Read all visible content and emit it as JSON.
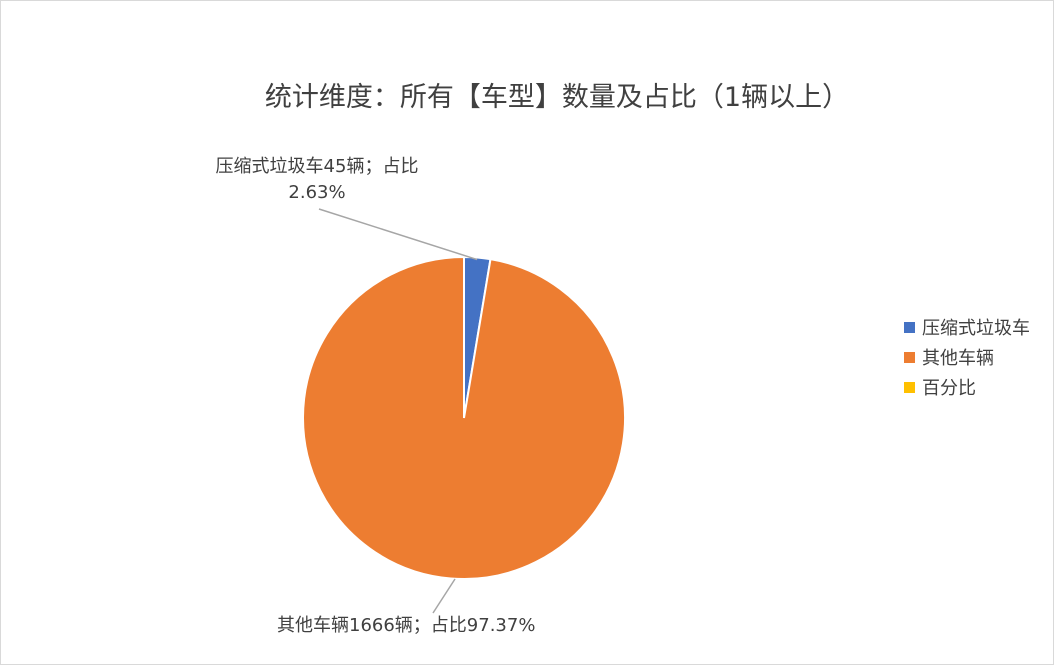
{
  "chart_data": {
    "type": "pie",
    "title": "统计维度：所有【车型】数量及占比（1辆以上）",
    "categories": [
      "压缩式垃圾车",
      "其他车辆"
    ],
    "values": [
      45,
      1666
    ],
    "percentages": [
      2.63,
      97.37
    ],
    "colors": [
      "#4472c4",
      "#ed7d31"
    ],
    "data_labels": [
      {
        "line1": "压缩式垃圾车45辆；占比",
        "line2": "2.63%"
      },
      {
        "line1": "其他车辆1666辆；占比97.37%"
      }
    ],
    "legend": {
      "position": "right",
      "entries": [
        {
          "label": "压缩式垃圾车",
          "color": "#4472c4"
        },
        {
          "label": "其他车辆",
          "color": "#ed7d31"
        },
        {
          "label": "百分比",
          "color": "#ffc000"
        }
      ]
    }
  }
}
